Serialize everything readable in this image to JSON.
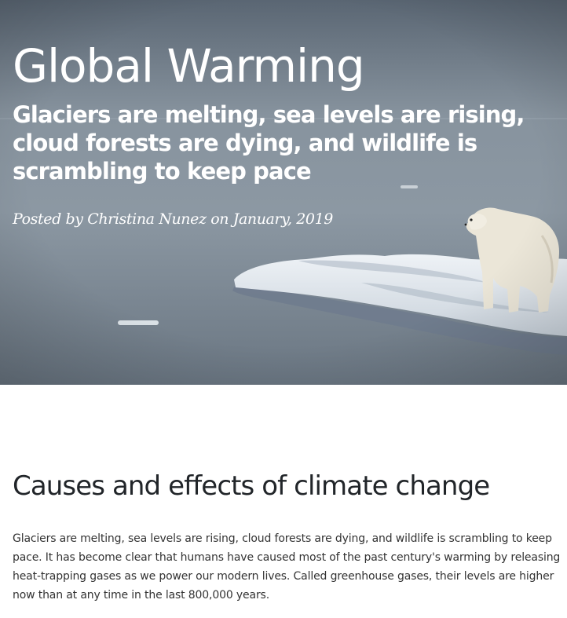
{
  "header": {
    "title": "Global Warming",
    "subtitle": "Glaciers are melting, sea levels are rising, cloud forests are dying, and wildlife is scrambling to keep pace",
    "meta": "Posted by Christina Nunez on January, 2019",
    "background_image": "polar-bear-on-ice-floe-image"
  },
  "article": {
    "heading": "Causes and effects of climate change",
    "paragraph": "Glaciers are melting, sea levels are rising, cloud forests are dying, and wildlife is scrambling to keep pace. It has become clear that humans have caused most of the past century's warming by releasing heat-trapping gases as we power our modern lives. Called greenhouse gases, their levels are higher now than at any time in the last 800,000 years."
  },
  "colors": {
    "heading_text": "#212529",
    "body_text": "#333333",
    "hero_text": "#ffffff"
  }
}
